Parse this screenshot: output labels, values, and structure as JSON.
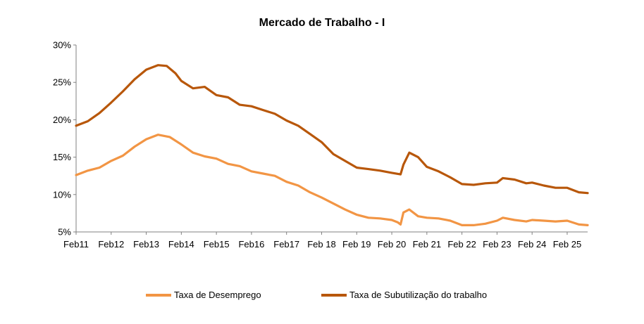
{
  "chart_data": {
    "type": "line",
    "title": "Mercado de Trabalho  -  I",
    "xlabel": "",
    "ylabel": "",
    "x_tick_labels": [
      "Feb11",
      "Feb12",
      "Feb13",
      "Feb14",
      "Feb15",
      "Feb16",
      "Feb17",
      "Feb 18",
      "Feb 19",
      "Feb 20",
      "Feb 21",
      "Feb 22",
      "Feb 23",
      "Feb 24",
      "Feb 25"
    ],
    "y_tick_labels": [
      "5%",
      "10%",
      "15%",
      "20%",
      "25%",
      "30%"
    ],
    "ylim": [
      5,
      30
    ],
    "xlim": [
      "2011-02",
      "2025-09"
    ],
    "grid": false,
    "legend_position": "bottom",
    "series": [
      {
        "name": "Taxa de Desemprego",
        "color": "#F29544",
        "points": [
          [
            "2011-02",
            12.6
          ],
          [
            "2011-06",
            13.2
          ],
          [
            "2011-10",
            13.6
          ],
          [
            "2012-02",
            14.5
          ],
          [
            "2012-06",
            15.2
          ],
          [
            "2012-10",
            16.4
          ],
          [
            "2013-02",
            17.4
          ],
          [
            "2013-06",
            18.0
          ],
          [
            "2013-10",
            17.7
          ],
          [
            "2014-02",
            16.7
          ],
          [
            "2014-06",
            15.6
          ],
          [
            "2014-10",
            15.1
          ],
          [
            "2015-02",
            14.8
          ],
          [
            "2015-06",
            14.1
          ],
          [
            "2015-10",
            13.8
          ],
          [
            "2016-02",
            13.1
          ],
          [
            "2016-06",
            12.8
          ],
          [
            "2016-10",
            12.5
          ],
          [
            "2017-02",
            11.7
          ],
          [
            "2017-06",
            11.2
          ],
          [
            "2017-10",
            10.3
          ],
          [
            "2018-02",
            9.6
          ],
          [
            "2018-06",
            8.8
          ],
          [
            "2018-10",
            8.0
          ],
          [
            "2019-02",
            7.3
          ],
          [
            "2019-06",
            6.9
          ],
          [
            "2019-10",
            6.8
          ],
          [
            "2020-02",
            6.6
          ],
          [
            "2020-04",
            6.3
          ],
          [
            "2020-05",
            6.0
          ],
          [
            "2020-06",
            7.6
          ],
          [
            "2020-08",
            8.0
          ],
          [
            "2020-11",
            7.1
          ],
          [
            "2021-02",
            6.9
          ],
          [
            "2021-06",
            6.8
          ],
          [
            "2021-10",
            6.5
          ],
          [
            "2022-02",
            5.9
          ],
          [
            "2022-06",
            5.9
          ],
          [
            "2022-10",
            6.1
          ],
          [
            "2023-02",
            6.5
          ],
          [
            "2023-04",
            6.9
          ],
          [
            "2023-08",
            6.6
          ],
          [
            "2023-12",
            6.4
          ],
          [
            "2024-02",
            6.6
          ],
          [
            "2024-06",
            6.5
          ],
          [
            "2024-10",
            6.4
          ],
          [
            "2025-02",
            6.5
          ],
          [
            "2025-06",
            6.0
          ],
          [
            "2025-09",
            5.9
          ]
        ]
      },
      {
        "name": "Taxa de Subutilização do trabalho",
        "color": "#B8570A",
        "points": [
          [
            "2011-02",
            19.2
          ],
          [
            "2011-06",
            19.8
          ],
          [
            "2011-10",
            20.9
          ],
          [
            "2012-02",
            22.3
          ],
          [
            "2012-06",
            23.8
          ],
          [
            "2012-10",
            25.4
          ],
          [
            "2013-02",
            26.7
          ],
          [
            "2013-06",
            27.3
          ],
          [
            "2013-09",
            27.2
          ],
          [
            "2013-12",
            26.2
          ],
          [
            "2014-02",
            25.2
          ],
          [
            "2014-06",
            24.2
          ],
          [
            "2014-10",
            24.4
          ],
          [
            "2015-02",
            23.3
          ],
          [
            "2015-06",
            23.0
          ],
          [
            "2015-10",
            22.0
          ],
          [
            "2016-02",
            21.8
          ],
          [
            "2016-06",
            21.3
          ],
          [
            "2016-10",
            20.8
          ],
          [
            "2017-02",
            19.9
          ],
          [
            "2017-06",
            19.2
          ],
          [
            "2017-10",
            18.1
          ],
          [
            "2018-02",
            17.0
          ],
          [
            "2018-06",
            15.4
          ],
          [
            "2018-10",
            14.5
          ],
          [
            "2019-02",
            13.6
          ],
          [
            "2019-06",
            13.4
          ],
          [
            "2019-10",
            13.2
          ],
          [
            "2020-02",
            12.9
          ],
          [
            "2020-05",
            12.7
          ],
          [
            "2020-06",
            14.0
          ],
          [
            "2020-08",
            15.6
          ],
          [
            "2020-11",
            15.0
          ],
          [
            "2021-02",
            13.7
          ],
          [
            "2021-06",
            13.1
          ],
          [
            "2021-10",
            12.3
          ],
          [
            "2022-02",
            11.4
          ],
          [
            "2022-06",
            11.3
          ],
          [
            "2022-10",
            11.5
          ],
          [
            "2023-02",
            11.6
          ],
          [
            "2023-04",
            12.2
          ],
          [
            "2023-08",
            12.0
          ],
          [
            "2023-12",
            11.5
          ],
          [
            "2024-02",
            11.6
          ],
          [
            "2024-06",
            11.2
          ],
          [
            "2024-10",
            10.9
          ],
          [
            "2025-02",
            10.9
          ],
          [
            "2025-06",
            10.3
          ],
          [
            "2025-09",
            10.2
          ]
        ]
      }
    ]
  }
}
